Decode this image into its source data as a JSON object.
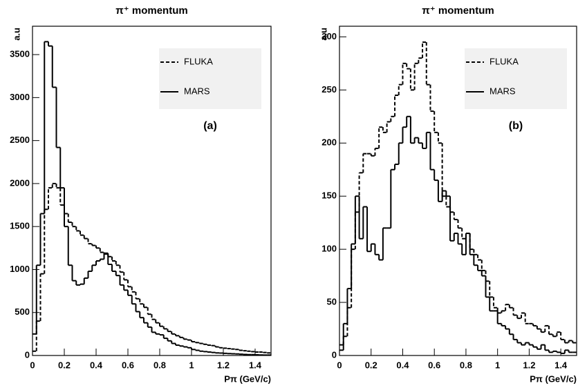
{
  "chart_data": [
    {
      "type": "histogram",
      "title": "π⁺ momentum",
      "xlabel": "Pπ (GeV/c)",
      "ylabel": "a.u",
      "annotation": "(a)",
      "legend": "upper right",
      "bins": [
        0,
        0.025,
        0.05,
        0.075,
        0.1,
        0.125,
        0.15,
        0.175,
        0.2,
        0.225,
        0.25,
        0.275,
        0.3,
        0.325,
        0.35,
        0.375,
        0.4,
        0.425,
        0.45,
        0.475,
        0.5,
        0.525,
        0.55,
        0.575,
        0.6,
        0.625,
        0.65,
        0.675,
        0.7,
        0.725,
        0.75,
        0.775,
        0.8,
        0.825,
        0.85,
        0.875,
        0.9,
        0.925,
        0.95,
        0.975,
        1.0,
        1.025,
        1.05,
        1.075,
        1.1,
        1.125,
        1.15,
        1.175,
        1.2,
        1.225,
        1.25,
        1.275,
        1.3,
        1.325,
        1.35,
        1.375,
        1.4,
        1.425,
        1.45,
        1.475,
        1.5
      ],
      "series": [
        {
          "name": "FLUKA",
          "color": "#000000",
          "dash": "5,3",
          "values": [
            50,
            400,
            950,
            1700,
            1950,
            2000,
            1950,
            1750,
            1650,
            1550,
            1500,
            1450,
            1400,
            1360,
            1300,
            1280,
            1250,
            1200,
            1180,
            1150,
            1100,
            1050,
            970,
            880,
            800,
            740,
            660,
            600,
            560,
            480,
            420,
            380,
            340,
            310,
            280,
            250,
            230,
            210,
            190,
            180,
            160,
            150,
            140,
            130,
            120,
            115,
            100,
            90,
            85,
            80,
            75,
            70,
            60,
            55,
            50,
            45,
            40,
            40,
            35,
            30
          ]
        },
        {
          "name": "MARS",
          "color": "#000000",
          "dash": "none",
          "values": [
            250,
            1050,
            1650,
            3650,
            3600,
            3120,
            2420,
            1950,
            1500,
            1050,
            870,
            820,
            830,
            900,
            980,
            1050,
            1100,
            1120,
            1190,
            1060,
            980,
            930,
            820,
            760,
            700,
            600,
            510,
            440,
            380,
            330,
            270,
            250,
            240,
            200,
            170,
            140,
            120,
            110,
            100,
            90,
            70,
            60,
            50,
            45,
            40,
            35,
            30,
            28,
            25,
            22,
            20,
            18,
            15,
            12,
            10,
            10,
            8,
            6,
            5,
            5
          ]
        }
      ],
      "xlim": [
        0,
        1.5
      ],
      "xticks": [
        0,
        0.2,
        0.4,
        0.6,
        0.8,
        1,
        1.2,
        1.4
      ],
      "ylim": [
        0,
        3830
      ],
      "yticks": [
        0,
        500,
        1000,
        1500,
        2000,
        2500,
        3000,
        3500
      ]
    },
    {
      "type": "histogram",
      "title": "π⁺ momentum",
      "xlabel": "Pπ (GeV/c)",
      "ylabel": "a.u",
      "annotation": "(b)",
      "legend": "upper right",
      "bins": [
        0,
        0.025,
        0.05,
        0.075,
        0.1,
        0.125,
        0.15,
        0.175,
        0.2,
        0.225,
        0.25,
        0.275,
        0.3,
        0.325,
        0.35,
        0.375,
        0.4,
        0.425,
        0.45,
        0.475,
        0.5,
        0.525,
        0.55,
        0.575,
        0.6,
        0.625,
        0.65,
        0.675,
        0.7,
        0.725,
        0.75,
        0.775,
        0.8,
        0.825,
        0.85,
        0.875,
        0.9,
        0.925,
        0.95,
        0.975,
        1.0,
        1.025,
        1.05,
        1.075,
        1.1,
        1.125,
        1.15,
        1.175,
        1.2,
        1.225,
        1.25,
        1.275,
        1.3,
        1.325,
        1.35,
        1.375,
        1.4,
        1.425,
        1.45,
        1.475,
        1.5
      ],
      "series": [
        {
          "name": "FLUKA",
          "color": "#000000",
          "dash": "5,3",
          "values": [
            10,
            18,
            45,
            100,
            135,
            172,
            190,
            190,
            188,
            195,
            215,
            210,
            220,
            225,
            245,
            255,
            275,
            270,
            250,
            275,
            280,
            295,
            255,
            230,
            210,
            200,
            150,
            140,
            135,
            128,
            120,
            110,
            115,
            100,
            95,
            90,
            80,
            70,
            55,
            45,
            40,
            42,
            48,
            45,
            38,
            35,
            40,
            30,
            30,
            28,
            25,
            22,
            28,
            20,
            18,
            22,
            15,
            12,
            14,
            12
          ]
        },
        {
          "name": "MARS",
          "color": "#000000",
          "dash": "none",
          "values": [
            5,
            30,
            63,
            105,
            150,
            110,
            140,
            98,
            105,
            95,
            90,
            120,
            120,
            175,
            180,
            200,
            215,
            225,
            200,
            205,
            200,
            195,
            210,
            175,
            165,
            145,
            155,
            150,
            108,
            115,
            105,
            95,
            115,
            95,
            85,
            80,
            75,
            55,
            42,
            42,
            30,
            28,
            25,
            20,
            15,
            12,
            10,
            12,
            10,
            8,
            6,
            10,
            5,
            3,
            4,
            3,
            2,
            5,
            3,
            3
          ]
        }
      ],
      "xlim": [
        0,
        1.5
      ],
      "xticks": [
        0,
        0.2,
        0.4,
        0.6,
        0.8,
        1,
        1.2,
        1.4
      ],
      "ylim": [
        0,
        310
      ],
      "yticks": [
        0,
        50,
        100,
        150,
        200,
        250,
        300
      ]
    }
  ]
}
